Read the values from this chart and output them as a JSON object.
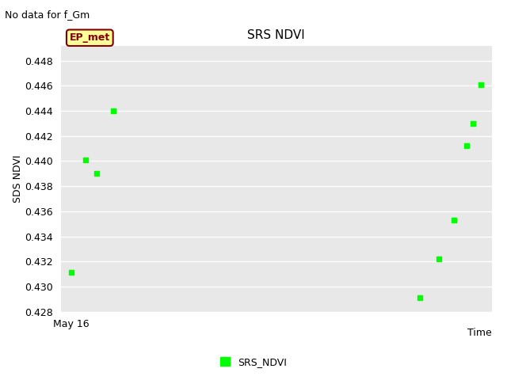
{
  "title": "SRS NDVI",
  "no_data_text": "No data for f_Gm",
  "ylabel": "SDS NDVI",
  "xlabel": "Time",
  "x_label_left": "May 16",
  "ylim": [
    0.428,
    0.4492
  ],
  "yticks": [
    0.428,
    0.43,
    0.432,
    0.434,
    0.436,
    0.438,
    0.44,
    0.442,
    0.444,
    0.446,
    0.448
  ],
  "fig_bg_color": "#ffffff",
  "plot_bg_color": "#e8e8e8",
  "grid_color": "#ffffff",
  "legend_label": "SRS_NDVI",
  "legend_marker_color": "#00ff00",
  "ep_met_box_color": "#ffff99",
  "ep_met_text_color": "#800000",
  "points_x": [
    0.015,
    0.048,
    0.075,
    0.115,
    0.84,
    0.885,
    0.92,
    0.95,
    0.965,
    0.985
  ],
  "points_y": [
    0.4311,
    0.4401,
    0.439,
    0.444,
    0.4291,
    0.4322,
    0.4353,
    0.4412,
    0.443,
    0.4461
  ],
  "marker_color": "#00ff00",
  "marker_size": 5
}
